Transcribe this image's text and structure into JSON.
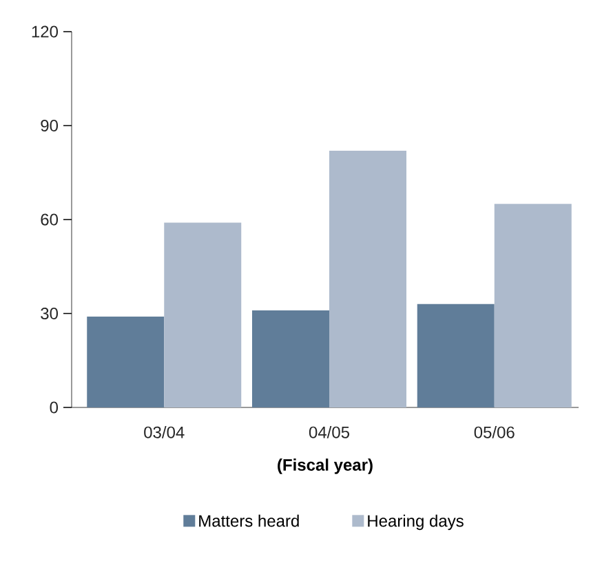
{
  "chart_data": {
    "type": "bar",
    "xlabel": "(Fiscal year)",
    "categories": [
      "03/04",
      "04/05",
      "05/06"
    ],
    "series": [
      {
        "name": "Matters heard",
        "color": "#607d99",
        "values": [
          29,
          31,
          33
        ]
      },
      {
        "name": "Hearing days",
        "color": "#adbacc",
        "values": [
          59,
          82,
          65
        ]
      }
    ],
    "ylim": [
      0,
      120
    ],
    "yticks": [
      0,
      30,
      60,
      90,
      120
    ],
    "grid": false,
    "legend": "bottom"
  }
}
